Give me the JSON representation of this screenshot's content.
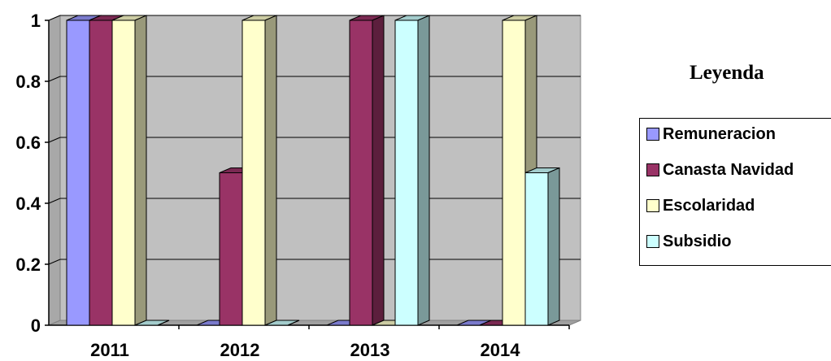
{
  "chart_data": {
    "type": "bar",
    "categories": [
      "2011",
      "2012",
      "2013",
      "2014"
    ],
    "series": [
      {
        "name": "Remuneracion",
        "values": [
          1,
          0,
          0,
          0
        ],
        "color": "#9999ff"
      },
      {
        "name": "Canasta Navidad",
        "values": [
          1,
          0.5,
          1,
          0
        ],
        "color": "#993366"
      },
      {
        "name": "Escolaridad",
        "values": [
          1,
          1,
          0,
          1
        ],
        "color": "#ffffcc"
      },
      {
        "name": "Subsidio",
        "values": [
          0,
          0,
          1,
          0.5
        ],
        "color": "#ccffff"
      }
    ],
    "y_ticks": [
      "0",
      "0.2",
      "0.4",
      "0.6",
      "0.8",
      "1"
    ],
    "ylim": [
      0,
      1
    ],
    "grid": true,
    "plot_background": "#c0c0c0",
    "legend": {
      "title": "Leyenda",
      "position": "right"
    }
  }
}
